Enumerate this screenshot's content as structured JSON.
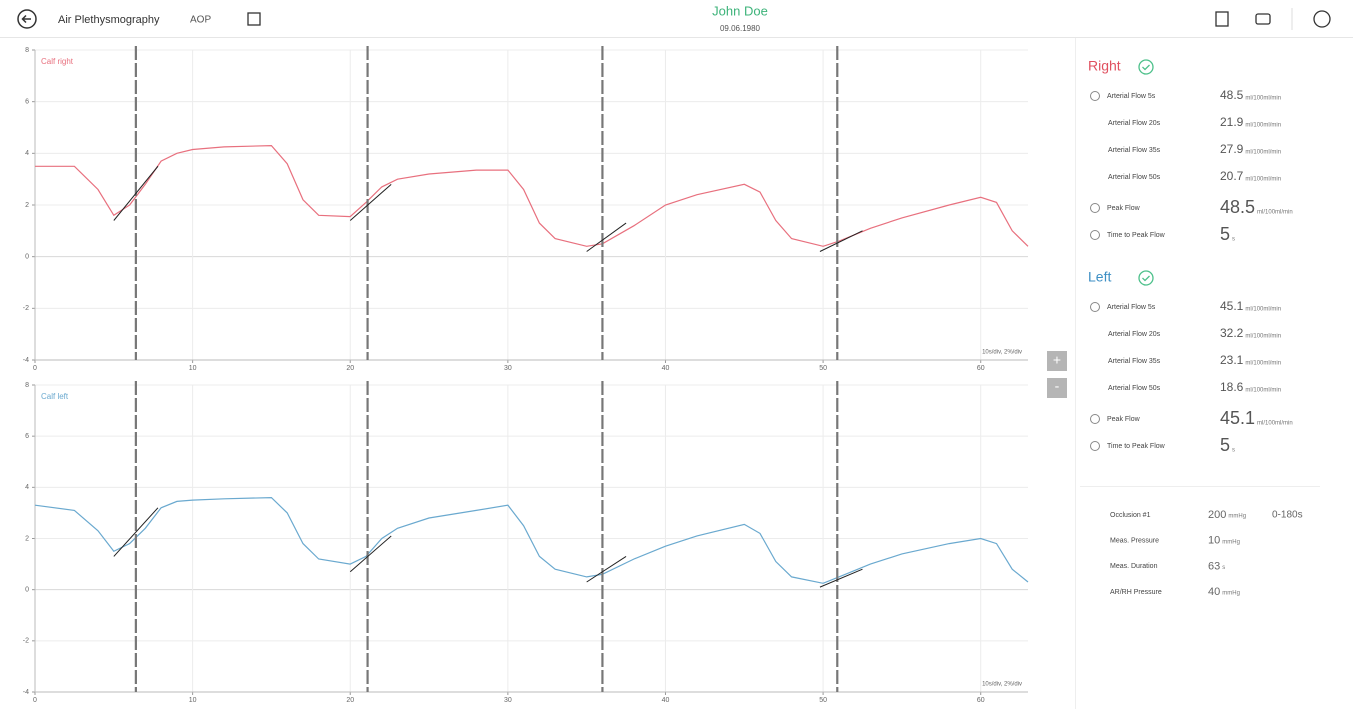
{
  "header": {
    "title": "Air Plethysmography",
    "code": "AOP",
    "patient": "John Doe",
    "birthdate": "09.06.1980"
  },
  "chart_data": [
    {
      "type": "line",
      "title": "Calf right",
      "note": "10s/div, 2%/div",
      "x": [
        0,
        2.5,
        4,
        5,
        6,
        7,
        8,
        9,
        10,
        12,
        15,
        16,
        17,
        18,
        20,
        21,
        22,
        23,
        25,
        28,
        30,
        31,
        32,
        33,
        35,
        36,
        38,
        40,
        42,
        45,
        46,
        47,
        48,
        50,
        51,
        53,
        55,
        58,
        60,
        61,
        62,
        63
      ],
      "series": [
        {
          "color": "#e8707e",
          "values": [
            3.5,
            3.5,
            2.6,
            1.6,
            2.0,
            2.8,
            3.7,
            4.0,
            4.15,
            4.25,
            4.3,
            3.6,
            2.2,
            1.6,
            1.55,
            2.1,
            2.7,
            3.0,
            3.2,
            3.35,
            3.35,
            2.6,
            1.3,
            0.7,
            0.4,
            0.5,
            1.2,
            2.0,
            2.4,
            2.8,
            2.5,
            1.4,
            0.7,
            0.4,
            0.6,
            1.1,
            1.5,
            2.0,
            2.3,
            2.1,
            1.0,
            0.4
          ]
        }
      ],
      "markers": [
        6.4,
        21.1,
        36.0,
        50.9
      ],
      "fits": [
        {
          "x": [
            5,
            7.8
          ],
          "values": [
            1.4,
            3.5
          ]
        },
        {
          "x": [
            20,
            22.6
          ],
          "values": [
            1.4,
            2.8
          ]
        },
        {
          "x": [
            35,
            37.5
          ],
          "values": [
            0.2,
            1.3
          ]
        },
        {
          "x": [
            49.8,
            52.5
          ],
          "values": [
            0.2,
            1.0
          ]
        }
      ],
      "xlim": [
        0,
        63
      ],
      "ylim": [
        -4,
        8
      ],
      "xticks": [
        0,
        10,
        20,
        30,
        40,
        50,
        60
      ],
      "yticks": [
        -4,
        -2,
        0,
        2,
        4,
        6,
        8
      ],
      "grid": true
    },
    {
      "type": "line",
      "title": "Calf left",
      "note": "10s/div, 2%/div",
      "x": [
        0,
        2.5,
        4,
        5,
        6,
        7,
        8,
        9,
        10,
        12,
        15,
        16,
        17,
        18,
        20,
        21,
        22,
        23,
        25,
        28,
        30,
        31,
        32,
        33,
        35,
        36,
        38,
        40,
        42,
        45,
        46,
        47,
        48,
        50,
        51,
        53,
        55,
        58,
        60,
        61,
        62,
        63
      ],
      "series": [
        {
          "color": "#6aa9cf",
          "values": [
            3.3,
            3.1,
            2.3,
            1.5,
            1.8,
            2.4,
            3.2,
            3.45,
            3.5,
            3.55,
            3.6,
            3.0,
            1.8,
            1.2,
            1.0,
            1.3,
            2.0,
            2.4,
            2.8,
            3.1,
            3.3,
            2.5,
            1.3,
            0.8,
            0.5,
            0.6,
            1.2,
            1.7,
            2.1,
            2.55,
            2.2,
            1.1,
            0.5,
            0.25,
            0.5,
            1.0,
            1.4,
            1.8,
            2.0,
            1.8,
            0.8,
            0.3
          ]
        }
      ],
      "markers": [
        6.4,
        21.1,
        36.0,
        50.9
      ],
      "fits": [
        {
          "x": [
            5,
            7.8
          ],
          "values": [
            1.3,
            3.2
          ]
        },
        {
          "x": [
            20,
            22.6
          ],
          "values": [
            0.7,
            2.1
          ]
        },
        {
          "x": [
            35,
            37.5
          ],
          "values": [
            0.3,
            1.3
          ]
        },
        {
          "x": [
            49.8,
            52.5
          ],
          "values": [
            0.1,
            0.8
          ]
        }
      ],
      "xlim": [
        0,
        63
      ],
      "ylim": [
        -4,
        8
      ],
      "xticks": [
        0,
        10,
        20,
        30,
        40,
        50,
        60
      ],
      "yticks": [
        -4,
        -2,
        0,
        2,
        4,
        6,
        8
      ],
      "grid": true
    }
  ],
  "zoom": {
    "in": "+",
    "out": "-"
  },
  "results": [
    {
      "side": "Right",
      "color": "#e0505f",
      "rows": [
        {
          "label": "Arterial Flow 5s",
          "value": 48.5,
          "unit": "ml/100ml/min"
        },
        {
          "label": "Arterial Flow 20s",
          "value": 21.9,
          "unit": "ml/100ml/min"
        },
        {
          "label": "Arterial Flow 35s",
          "value": 27.9,
          "unit": "ml/100ml/min"
        },
        {
          "label": "Arterial Flow 50s",
          "value": 20.7,
          "unit": "ml/100ml/min"
        },
        {
          "label": "Peak Flow",
          "value": 48.5,
          "unit": "ml/100ml/min"
        },
        {
          "label": "Time to Peak Flow",
          "value": 5,
          "unit": "s"
        }
      ]
    },
    {
      "side": "Left",
      "color": "#3d8fc4",
      "rows": [
        {
          "label": "Arterial Flow 5s",
          "value": 45.1,
          "unit": "ml/100ml/min"
        },
        {
          "label": "Arterial Flow 20s",
          "value": 32.2,
          "unit": "ml/100ml/min"
        },
        {
          "label": "Arterial Flow 35s",
          "value": 23.1,
          "unit": "ml/100ml/min"
        },
        {
          "label": "Arterial Flow 50s",
          "value": 18.6,
          "unit": "ml/100ml/min"
        },
        {
          "label": "Peak Flow",
          "value": 45.1,
          "unit": "ml/100ml/min"
        },
        {
          "label": "Time to Peak Flow",
          "value": 5,
          "unit": "s"
        }
      ]
    }
  ],
  "settings": [
    {
      "label": "Occlusion #1",
      "value": 200,
      "unit": "mmHg",
      "extra": "0-180s"
    },
    {
      "label": "Meas. Pressure",
      "value": 10,
      "unit": "mmHg"
    },
    {
      "label": "Meas. Duration",
      "value": 63,
      "unit": "s"
    },
    {
      "label": "AR/RH Pressure",
      "value": 40,
      "unit": "mmHg"
    }
  ]
}
